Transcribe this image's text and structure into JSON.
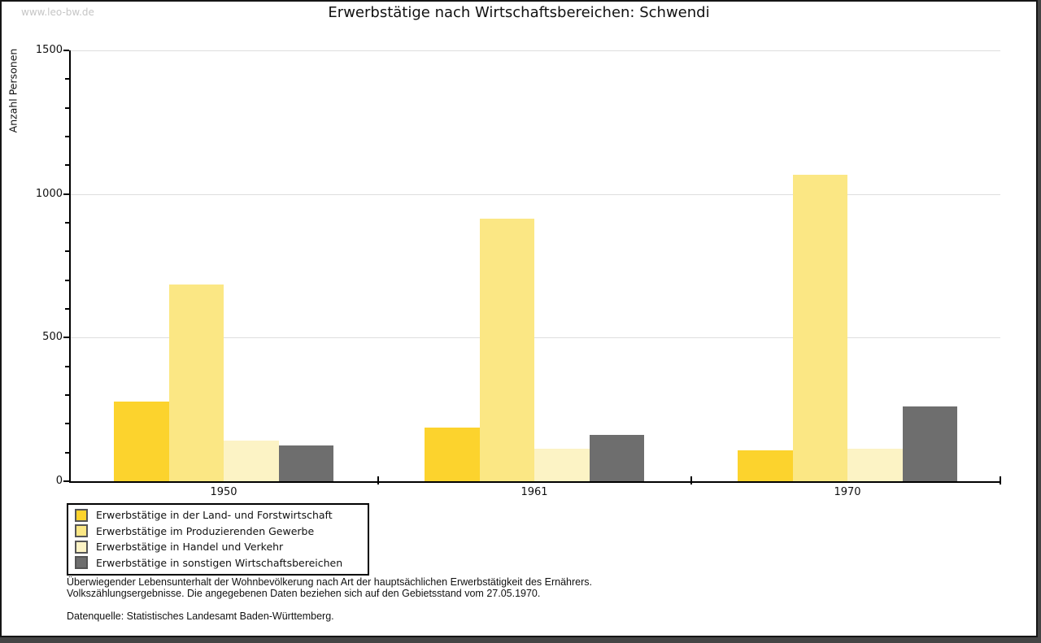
{
  "watermark": {
    "text": "www.leo-bw.de"
  },
  "title": {
    "text": "Erwerbstätige nach Wirtschaftsbereichen: Schwendi"
  },
  "chart_data": {
    "type": "bar",
    "title": "Erwerbstätige nach Wirtschaftsbereichen: Schwendi",
    "xlabel": "",
    "ylabel": "Anzahl Personen",
    "categories": [
      "1950",
      "1961",
      "1970"
    ],
    "series": [
      {
        "name": "Erwerbstätige in der Land- und Forstwirtschaft",
        "color": "#fcd32d",
        "values": [
          278,
          186,
          107
        ]
      },
      {
        "name": "Erwerbstätige im Produzierenden Gewerbe",
        "color": "#fbe784",
        "values": [
          686,
          915,
          1068
        ]
      },
      {
        "name": "Erwerbstätige in Handel und Verkehr",
        "color": "#fcf3c5",
        "values": [
          141,
          113,
          113
        ]
      },
      {
        "name": "Erwerbstätige in sonstigen Wirtschaftsbereichen",
        "color": "#6e6e6e",
        "values": [
          124,
          161,
          260
        ]
      }
    ],
    "ylim": [
      0,
      1500
    ],
    "yticks": [
      0,
      500,
      1000,
      1500
    ],
    "minor_ytick_step": 100,
    "grid": "horizontal-major",
    "legend_position": "bottom-left"
  },
  "footnotes": {
    "line1": "Überwiegender Lebensunterhalt der Wohnbevölkerung nach Art der hauptsächlichen Erwerbstätigkeit des Ernährers.",
    "line2": "Volkszählungsergebnisse. Die angegebenen Daten beziehen sich auf den Gebietsstand vom 27.05.1970.",
    "source": "Datenquelle: Statistisches Landesamt Baden-Württemberg."
  }
}
